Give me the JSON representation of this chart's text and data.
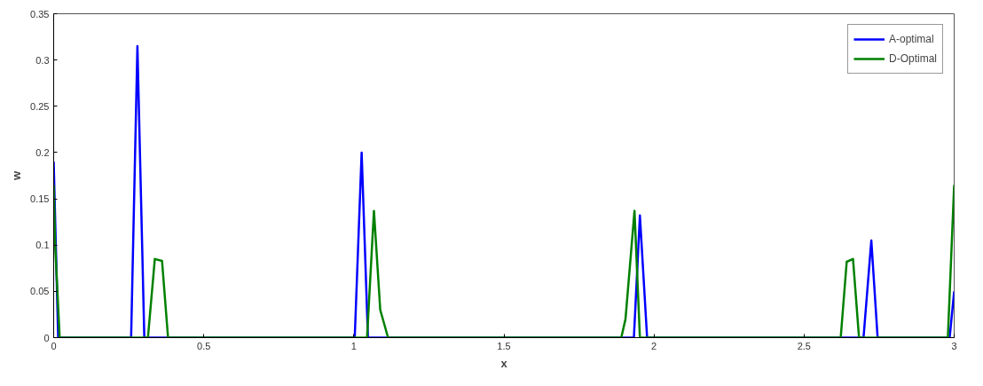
{
  "chart_data": {
    "type": "line",
    "xlabel": "x",
    "ylabel": "w",
    "xlim": [
      0,
      3
    ],
    "ylim": [
      0,
      0.35
    ],
    "xticks": [
      0,
      0.5,
      1,
      1.5,
      2,
      2.5,
      3
    ],
    "yticks": [
      0,
      0.05,
      0.1,
      0.15,
      0.2,
      0.25,
      0.3,
      0.35
    ],
    "grid": false,
    "legend": "top right",
    "marker": "none",
    "line_style": "solid",
    "series": [
      {
        "name": "A-optimal",
        "color": "#0000ff",
        "x": [
          0,
          0.015,
          0.258,
          0.279,
          0.302,
          1.003,
          1.026,
          1.047,
          1.933,
          1.953,
          1.977,
          2.698,
          2.724,
          2.745,
          2.985,
          3
        ],
        "values": [
          0.19,
          0,
          0,
          0.315,
          0,
          0,
          0.2,
          0,
          0,
          0.132,
          0,
          0,
          0.105,
          0,
          0,
          0.05
        ]
      },
      {
        "name": "D-Optimal",
        "color": "#008000",
        "x": [
          0,
          0.005,
          0.02,
          0.314,
          0.337,
          0.361,
          0.381,
          1.044,
          1.067,
          1.088,
          1.114,
          1.891,
          1.905,
          1.935,
          1.953,
          2.622,
          2.642,
          2.663,
          2.683,
          2.979,
          3
        ],
        "values": [
          0.165,
          0.1,
          0,
          0,
          0.085,
          0.083,
          0,
          0,
          0.137,
          0.03,
          0,
          0,
          0.02,
          0.137,
          0,
          0,
          0.082,
          0.085,
          0,
          0,
          0.165
        ]
      }
    ]
  }
}
